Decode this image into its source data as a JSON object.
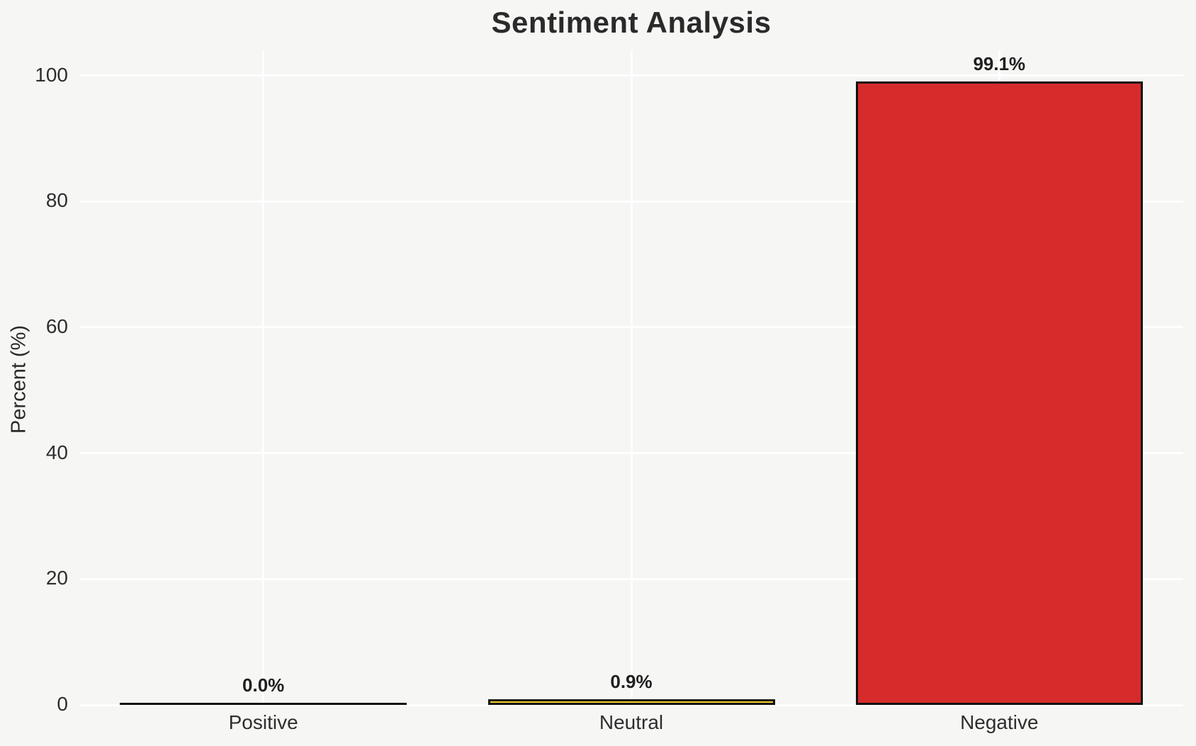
{
  "chart_data": {
    "type": "bar",
    "title": "Sentiment Analysis",
    "xlabel": "",
    "ylabel": "Percent (%)",
    "categories": [
      "Positive",
      "Neutral",
      "Negative"
    ],
    "values": [
      0.0,
      0.9,
      99.1
    ],
    "value_labels": [
      "0.0%",
      "0.9%",
      "99.1%"
    ],
    "bar_colors": [
      "none",
      "#f5d130",
      "#d62b2b"
    ],
    "bar_edge_color": "#111111",
    "ylim": [
      0,
      104
    ],
    "yticks": [
      0,
      20,
      40,
      60,
      80,
      100
    ],
    "ytick_labels": [
      "0",
      "20",
      "40",
      "60",
      "80",
      "100"
    ],
    "grid": "on",
    "grid_color": "#ffffff",
    "background_color": "#f6f6f5",
    "legend": "none"
  }
}
